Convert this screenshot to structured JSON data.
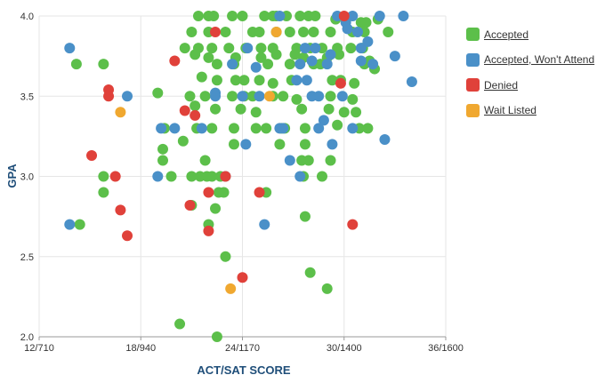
{
  "chart_data": {
    "type": "scatter",
    "title": "",
    "xlabel": "ACT/SAT SCORE",
    "ylabel": "GPA",
    "xlim": [
      12,
      36
    ],
    "ylim": [
      2.0,
      4.0
    ],
    "x_ticks": [
      {
        "value": 12,
        "label": "12/710"
      },
      {
        "value": 18,
        "label": "18/940"
      },
      {
        "value": 24,
        "label": "24/1170"
      },
      {
        "value": 30,
        "label": "30/1400"
      },
      {
        "value": 36,
        "label": "36/1600"
      }
    ],
    "y_ticks": [
      {
        "value": 2.0,
        "label": "2.0"
      },
      {
        "value": 2.5,
        "label": "2.5"
      },
      {
        "value": 3.0,
        "label": "3.0"
      },
      {
        "value": 3.5,
        "label": "3.5"
      },
      {
        "value": 4.0,
        "label": "4.0"
      }
    ],
    "grid": true,
    "legend_position": "right",
    "series": [
      {
        "name": "Accepted",
        "color": "#5cbf4a",
        "points": [
          [
            21.4,
            4.0
          ],
          [
            22.0,
            4.0
          ],
          [
            22.3,
            4.0
          ],
          [
            23.4,
            4.0
          ],
          [
            24.0,
            4.0
          ],
          [
            25.3,
            4.0
          ],
          [
            25.8,
            4.0
          ],
          [
            26.0,
            4.0
          ],
          [
            26.6,
            4.0
          ],
          [
            27.4,
            4.0
          ],
          [
            27.9,
            4.0
          ],
          [
            28.3,
            4.0
          ],
          [
            29.5,
            3.98
          ],
          [
            31.0,
            3.96
          ],
          [
            31.3,
            3.96
          ],
          [
            32.0,
            3.98
          ],
          [
            21.0,
            3.9
          ],
          [
            22.0,
            3.9
          ],
          [
            23.0,
            3.9
          ],
          [
            24.6,
            3.9
          ],
          [
            25.0,
            3.9
          ],
          [
            26.0,
            3.9
          ],
          [
            26.8,
            3.9
          ],
          [
            27.6,
            3.9
          ],
          [
            28.2,
            3.9
          ],
          [
            29.2,
            3.9
          ],
          [
            30.5,
            3.9
          ],
          [
            31.2,
            3.9
          ],
          [
            32.6,
            3.9
          ],
          [
            20.6,
            3.8
          ],
          [
            21.4,
            3.8
          ],
          [
            22.2,
            3.8
          ],
          [
            23.2,
            3.8
          ],
          [
            24.2,
            3.8
          ],
          [
            25.1,
            3.8
          ],
          [
            25.8,
            3.8
          ],
          [
            27.2,
            3.8
          ],
          [
            28.0,
            3.8
          ],
          [
            28.7,
            3.8
          ],
          [
            29.6,
            3.8
          ],
          [
            30.4,
            3.8
          ],
          [
            31.1,
            3.8
          ],
          [
            21.2,
            3.76
          ],
          [
            22.0,
            3.74
          ],
          [
            23.6,
            3.74
          ],
          [
            25.1,
            3.74
          ],
          [
            26.0,
            3.76
          ],
          [
            27.1,
            3.76
          ],
          [
            27.6,
            3.74
          ],
          [
            29.0,
            3.74
          ],
          [
            29.7,
            3.76
          ],
          [
            31.5,
            3.72
          ],
          [
            14.2,
            3.7
          ],
          [
            15.8,
            3.7
          ],
          [
            22.5,
            3.7
          ],
          [
            23.5,
            3.7
          ],
          [
            25.5,
            3.7
          ],
          [
            26.8,
            3.7
          ],
          [
            28.2,
            3.7
          ],
          [
            28.6,
            3.7
          ],
          [
            31.2,
            3.7
          ],
          [
            31.8,
            3.67
          ],
          [
            21.6,
            3.62
          ],
          [
            22.5,
            3.6
          ],
          [
            23.6,
            3.6
          ],
          [
            24.1,
            3.6
          ],
          [
            25.0,
            3.6
          ],
          [
            25.8,
            3.58
          ],
          [
            26.9,
            3.6
          ],
          [
            29.3,
            3.6
          ],
          [
            29.8,
            3.6
          ],
          [
            30.6,
            3.58
          ],
          [
            19.0,
            3.52
          ],
          [
            20.9,
            3.5
          ],
          [
            21.8,
            3.5
          ],
          [
            23.4,
            3.5
          ],
          [
            24.1,
            3.5
          ],
          [
            24.6,
            3.5
          ],
          [
            25.8,
            3.5
          ],
          [
            26.4,
            3.5
          ],
          [
            27.2,
            3.48
          ],
          [
            29.2,
            3.5
          ],
          [
            30.5,
            3.48
          ],
          [
            21.2,
            3.44
          ],
          [
            23.9,
            3.42
          ],
          [
            24.8,
            3.4
          ],
          [
            22.4,
            3.42
          ],
          [
            27.5,
            3.42
          ],
          [
            29.1,
            3.42
          ],
          [
            30.0,
            3.4
          ],
          [
            30.7,
            3.4
          ],
          [
            19.4,
            3.3
          ],
          [
            21.3,
            3.3
          ],
          [
            22.2,
            3.3
          ],
          [
            23.5,
            3.3
          ],
          [
            24.8,
            3.3
          ],
          [
            25.4,
            3.3
          ],
          [
            26.3,
            3.3
          ],
          [
            26.5,
            3.3
          ],
          [
            27.7,
            3.3
          ],
          [
            29.6,
            3.32
          ],
          [
            30.9,
            3.3
          ],
          [
            31.4,
            3.3
          ],
          [
            20.5,
            3.22
          ],
          [
            23.5,
            3.2
          ],
          [
            26.2,
            3.2
          ],
          [
            27.7,
            3.2
          ],
          [
            19.3,
            3.17
          ],
          [
            19.3,
            3.1
          ],
          [
            21.8,
            3.1
          ],
          [
            27.5,
            3.1
          ],
          [
            27.9,
            3.1
          ],
          [
            29.2,
            3.1
          ],
          [
            15.8,
            3.0
          ],
          [
            19.8,
            3.0
          ],
          [
            21.0,
            3.0
          ],
          [
            21.5,
            3.0
          ],
          [
            21.9,
            3.0
          ],
          [
            22.2,
            3.0
          ],
          [
            22.7,
            3.0
          ],
          [
            27.6,
            3.0
          ],
          [
            28.7,
            3.0
          ],
          [
            15.8,
            2.9
          ],
          [
            22.6,
            2.9
          ],
          [
            22.9,
            2.9
          ],
          [
            25.4,
            2.9
          ],
          [
            14.4,
            2.7
          ],
          [
            21.0,
            2.82
          ],
          [
            22.4,
            2.8
          ],
          [
            22.0,
            2.7
          ],
          [
            27.7,
            2.75
          ],
          [
            23.0,
            2.5
          ],
          [
            28.0,
            2.4
          ],
          [
            29.0,
            2.3
          ],
          [
            20.3,
            2.08
          ],
          [
            22.5,
            2.0
          ]
        ]
      },
      {
        "name": "Accepted, Won't Attend",
        "color": "#4a90c8",
        "points": [
          [
            13.8,
            3.8
          ],
          [
            13.8,
            2.7
          ],
          [
            17.2,
            3.5
          ],
          [
            19.2,
            3.3
          ],
          [
            20.0,
            3.3
          ],
          [
            19.0,
            3.0
          ],
          [
            21.6,
            3.3
          ],
          [
            22.4,
            3.52
          ],
          [
            22.4,
            3.5
          ],
          [
            23.0,
            3.0
          ],
          [
            24.0,
            3.5
          ],
          [
            24.3,
            3.8
          ],
          [
            23.4,
            3.7
          ],
          [
            24.8,
            3.68
          ],
          [
            25.0,
            3.5
          ],
          [
            24.2,
            3.2
          ],
          [
            25.3,
            2.7
          ],
          [
            26.2,
            3.3
          ],
          [
            26.4,
            3.3
          ],
          [
            26.8,
            3.1
          ],
          [
            27.4,
            3.0
          ],
          [
            26.2,
            4.0
          ],
          [
            27.2,
            3.6
          ],
          [
            27.4,
            3.7
          ],
          [
            27.7,
            3.8
          ],
          [
            27.8,
            3.6
          ],
          [
            28.1,
            3.5
          ],
          [
            28.3,
            3.8
          ],
          [
            28.1,
            3.72
          ],
          [
            28.8,
            3.35
          ],
          [
            28.5,
            3.3
          ],
          [
            29.3,
            3.2
          ],
          [
            29.0,
            3.7
          ],
          [
            29.2,
            3.76
          ],
          [
            29.6,
            4.0
          ],
          [
            29.9,
            3.5
          ],
          [
            30.1,
            3.96
          ],
          [
            30.2,
            3.92
          ],
          [
            30.5,
            3.3
          ],
          [
            30.8,
            3.9
          ],
          [
            31.0,
            3.8
          ],
          [
            31.4,
            3.84
          ],
          [
            31.7,
            3.7
          ],
          [
            32.1,
            4.0
          ],
          [
            32.4,
            3.23
          ],
          [
            33.0,
            3.75
          ],
          [
            33.5,
            4.0
          ],
          [
            34.0,
            3.59
          ],
          [
            28.5,
            3.5
          ],
          [
            30.5,
            4.0
          ],
          [
            31.0,
            3.72
          ]
        ]
      },
      {
        "name": "Denied",
        "color": "#e0413a",
        "points": [
          [
            15.1,
            3.13
          ],
          [
            16.1,
            3.54
          ],
          [
            16.1,
            3.5
          ],
          [
            16.5,
            3.0
          ],
          [
            16.8,
            2.79
          ],
          [
            17.2,
            2.63
          ],
          [
            20.0,
            3.72
          ],
          [
            20.6,
            3.41
          ],
          [
            21.2,
            3.38
          ],
          [
            20.9,
            2.82
          ],
          [
            22.0,
            2.9
          ],
          [
            22.4,
            3.9
          ],
          [
            23.0,
            3.0
          ],
          [
            22.0,
            2.66
          ],
          [
            24.0,
            2.37
          ],
          [
            25.0,
            2.9
          ],
          [
            29.8,
            3.58
          ],
          [
            30.0,
            4.0
          ],
          [
            30.5,
            2.7
          ]
        ]
      },
      {
        "name": "Wait Listed",
        "color": "#f0a830",
        "points": [
          [
            16.8,
            3.4
          ],
          [
            23.3,
            2.3
          ],
          [
            25.6,
            3.5
          ],
          [
            26.0,
            3.9
          ]
        ]
      }
    ]
  }
}
